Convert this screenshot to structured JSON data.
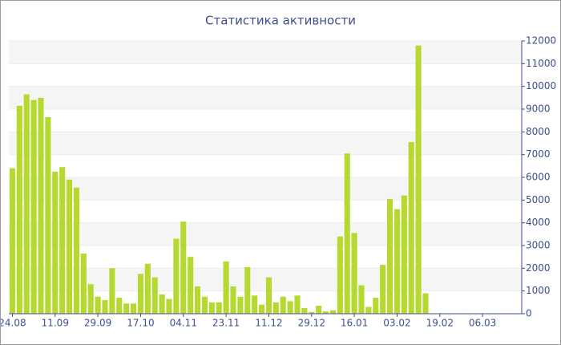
{
  "chart_data": {
    "type": "bar",
    "title": "Статистика активности",
    "categories": [
      "24.08",
      null,
      null,
      null,
      null,
      null,
      "11.09",
      null,
      null,
      null,
      null,
      null,
      "29.09",
      null,
      null,
      null,
      null,
      null,
      "17.10",
      null,
      null,
      null,
      null,
      null,
      "04.11",
      null,
      null,
      null,
      null,
      null,
      "23.11",
      null,
      null,
      null,
      null,
      null,
      "11.12",
      null,
      null,
      null,
      null,
      null,
      "29.12",
      null,
      null,
      null,
      null,
      null,
      "16.01",
      null,
      null,
      null,
      null,
      null,
      "03.02",
      null,
      null,
      null,
      null,
      null,
      "19.02",
      null,
      null,
      null,
      null,
      null,
      "06.03",
      null,
      null,
      null,
      null,
      null
    ],
    "values": [
      6400,
      9150,
      9650,
      9400,
      9500,
      8650,
      6250,
      6450,
      5900,
      5550,
      2650,
      1300,
      750,
      600,
      2000,
      700,
      450,
      450,
      1750,
      2200,
      1600,
      850,
      650,
      3300,
      4050,
      2500,
      1200,
      750,
      500,
      500,
      2300,
      1200,
      750,
      2050,
      800,
      400,
      1600,
      500,
      750,
      550,
      800,
      250,
      80,
      350,
      100,
      150,
      3400,
      7050,
      3550,
      1250,
      300,
      700,
      2150,
      5050,
      4600,
      5200,
      7550,
      11800,
      900,
      20,
      20,
      20,
      20,
      20,
      20,
      20,
      20,
      20,
      20,
      20,
      20,
      20
    ],
    "color": "#b5d930",
    "ylim": [
      0,
      12000
    ],
    "yticks": [
      0,
      1000,
      2000,
      3000,
      4000,
      5000,
      6000,
      7000,
      8000,
      9000,
      10000,
      11000,
      12000
    ],
    "y_axis_side": "right",
    "grid": true
  }
}
